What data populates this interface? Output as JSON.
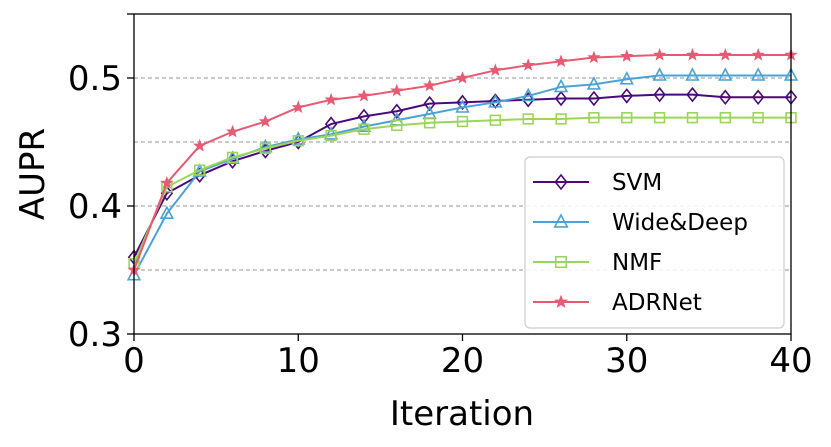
{
  "chart_data": {
    "type": "line",
    "title": "",
    "xlabel": "Iteration",
    "ylabel": "AUPR",
    "xlim": [
      0,
      40
    ],
    "ylim": [
      0.3,
      0.55
    ],
    "xticks": [
      0,
      10,
      20,
      30,
      40
    ],
    "xtick_labels": [
      "0",
      "10",
      "20",
      "30",
      "40"
    ],
    "yticks": [
      0.3,
      0.4,
      0.5
    ],
    "ytick_labels": [
      "0.3",
      "0.4",
      "0.5"
    ],
    "grid": "horizontal dashed",
    "grid_lines": [
      0.35,
      0.4,
      0.45,
      0.5
    ],
    "legend_position": "lower-right",
    "x": [
      0,
      2,
      4,
      6,
      8,
      10,
      12,
      14,
      16,
      18,
      20,
      22,
      24,
      26,
      28,
      30,
      32,
      34,
      36,
      38,
      40
    ],
    "series": [
      {
        "name": "SVM",
        "color": "#4b0a7a",
        "marker": "diamond",
        "values": [
          0.36,
          0.41,
          0.424,
          0.435,
          0.443,
          0.45,
          0.464,
          0.47,
          0.474,
          0.48,
          0.481,
          0.482,
          0.483,
          0.484,
          0.484,
          0.486,
          0.487,
          0.487,
          0.485,
          0.485,
          0.485
        ]
      },
      {
        "name": "Wide&Deep",
        "color": "#4aa3d4",
        "marker": "triangle",
        "values": [
          0.346,
          0.394,
          0.427,
          0.437,
          0.446,
          0.452,
          0.456,
          0.462,
          0.467,
          0.472,
          0.477,
          0.481,
          0.486,
          0.493,
          0.495,
          0.499,
          0.502,
          0.502,
          0.502,
          0.502,
          0.502
        ]
      },
      {
        "name": "NMF",
        "color": "#9bd65a",
        "marker": "square",
        "values": [
          0.355,
          0.415,
          0.428,
          0.438,
          0.445,
          0.451,
          0.455,
          0.46,
          0.463,
          0.465,
          0.466,
          0.467,
          0.468,
          0.468,
          0.469,
          0.469,
          0.469,
          0.469,
          0.469,
          0.469,
          0.469
        ]
      },
      {
        "name": "ADRNet",
        "color": "#e85a72",
        "marker": "star",
        "values": [
          0.35,
          0.418,
          0.447,
          0.458,
          0.466,
          0.477,
          0.483,
          0.486,
          0.49,
          0.494,
          0.5,
          0.506,
          0.51,
          0.513,
          0.516,
          0.517,
          0.518,
          0.518,
          0.518,
          0.518,
          0.518
        ]
      }
    ]
  }
}
